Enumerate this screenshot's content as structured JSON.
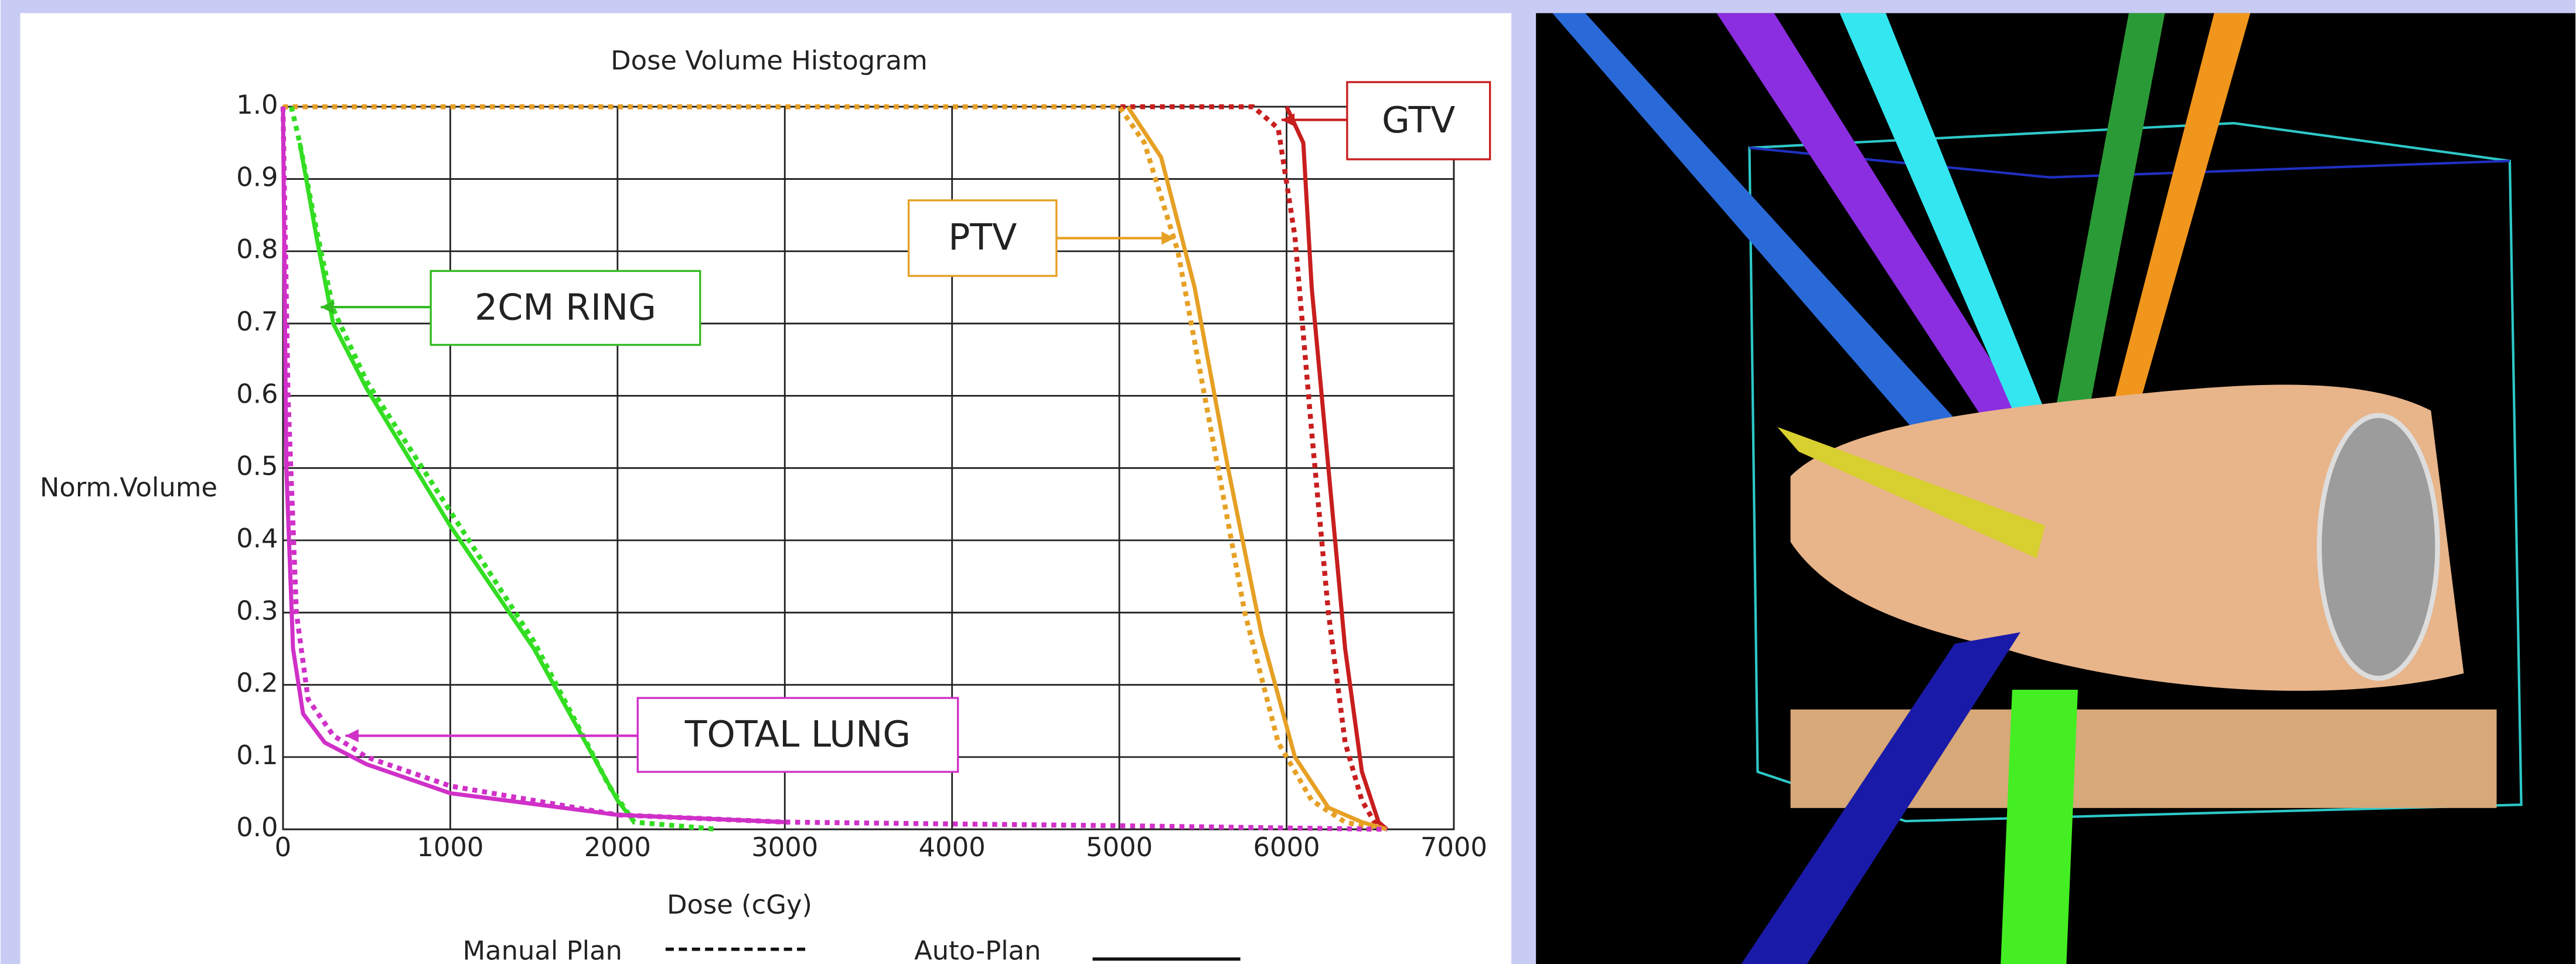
{
  "chart_data": {
    "type": "line",
    "title": "Dose Volume Histogram",
    "x_label": "Dose (cGy)",
    "y_label": "Norm.Volume",
    "xlim": [
      0,
      7000
    ],
    "xticks": [
      0,
      1000,
      2000,
      3000,
      4000,
      5000,
      6000,
      7000
    ],
    "ylim": [
      0,
      1
    ],
    "yticks": [
      {
        "value": 0,
        "label": "0.0"
      },
      0.1,
      0.2,
      0.3,
      0.4,
      0.5,
      0.6,
      0.7,
      0.8,
      0.9,
      {
        "value": 1,
        "label": "1.0"
      }
    ],
    "grid": true,
    "legend": [
      {
        "label": "Manual Plan",
        "dashed": true
      },
      {
        "label": "Auto-Plan",
        "dashed": false
      }
    ],
    "annotations": [
      "GTV",
      "PTV",
      "2CM RING",
      "TOTAL LUNG"
    ],
    "series": [
      {
        "color": "#c81e1e",
        "dashed": true,
        "x": [
          0,
          5800,
          5950,
          6050,
          6150,
          6250,
          6350,
          6450,
          6550
        ],
        "values": [
          1,
          1,
          0.97,
          0.82,
          0.55,
          0.3,
          0.12,
          0.04,
          0
        ]
      },
      {
        "color": "#c81e1e",
        "dashed": false,
        "x": [
          6000,
          6100,
          6150,
          6250,
          6350,
          6450,
          6550,
          6600
        ],
        "values": [
          1,
          0.95,
          0.75,
          0.5,
          0.25,
          0.08,
          0.01,
          0
        ]
      },
      {
        "color": "#e6a024",
        "dashed": true,
        "x": [
          0,
          5000,
          5150,
          5350,
          5550,
          5750,
          5950,
          6150,
          6350,
          6550
        ],
        "values": [
          1,
          1,
          0.95,
          0.8,
          0.55,
          0.3,
          0.12,
          0.04,
          0.01,
          0
        ]
      },
      {
        "color": "#e6a024",
        "dashed": false,
        "x": [
          5050,
          5250,
          5450,
          5650,
          5850,
          6050,
          6250,
          6450,
          6600
        ],
        "values": [
          1,
          0.93,
          0.75,
          0.5,
          0.27,
          0.1,
          0.03,
          0.01,
          0
        ]
      },
      {
        "color": "#33dd22",
        "dashed": true,
        "x": [
          50,
          100,
          200,
          300,
          500,
          1000,
          1500,
          1950,
          2100,
          2600
        ],
        "values": [
          1,
          0.95,
          0.83,
          0.72,
          0.62,
          0.44,
          0.26,
          0.06,
          0.01,
          0
        ]
      },
      {
        "color": "#33dd22",
        "dashed": false,
        "x": [
          100,
          200,
          300,
          500,
          1000,
          1500,
          2000,
          2100
        ],
        "values": [
          0.95,
          0.82,
          0.7,
          0.61,
          0.42,
          0.25,
          0.04,
          0.01
        ]
      },
      {
        "color": "#d030c8",
        "dashed": true,
        "x": [
          0,
          30,
          80,
          150,
          300,
          500,
          1000,
          1500,
          2000,
          3000,
          5000,
          6600
        ],
        "values": [
          1,
          0.6,
          0.3,
          0.18,
          0.13,
          0.1,
          0.06,
          0.04,
          0.02,
          0.01,
          0.005,
          0
        ]
      },
      {
        "color": "#d030c8",
        "dashed": false,
        "x": [
          0,
          20,
          60,
          120,
          250,
          500,
          1000,
          2000,
          3000
        ],
        "values": [
          1,
          0.5,
          0.25,
          0.16,
          0.12,
          0.09,
          0.05,
          0.02,
          0.01
        ]
      }
    ]
  }
}
